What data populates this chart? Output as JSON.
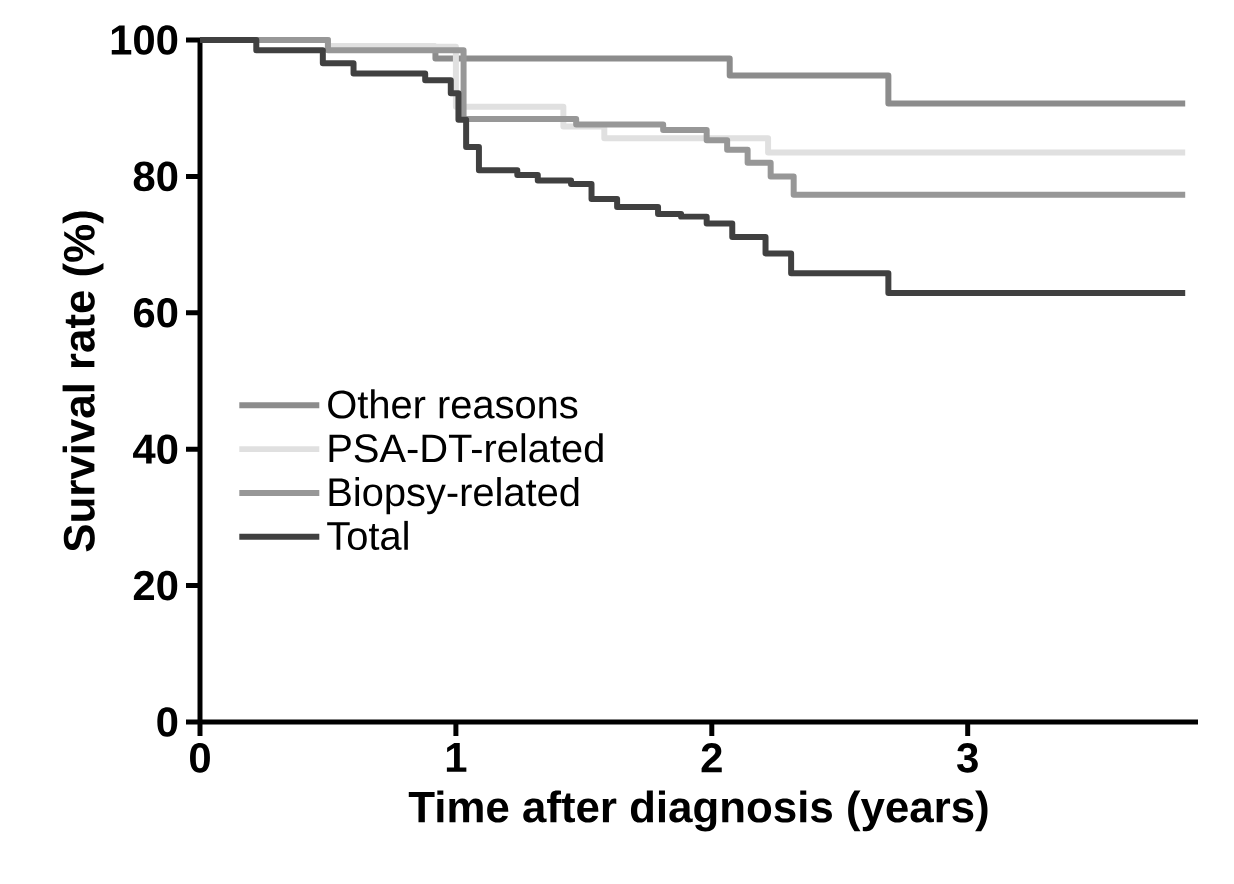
{
  "chart_data": {
    "type": "step",
    "xlabel": "Time after diagnosis (years)",
    "ylabel": "Survival rate (%)",
    "xlim": [
      0,
      3.9
    ],
    "ylim": [
      0,
      100
    ],
    "xticks": [
      0,
      1,
      2,
      3
    ],
    "yticks": [
      0,
      20,
      40,
      60,
      80,
      100
    ],
    "legend": "left",
    "series": [
      {
        "name": "Other reasons",
        "color": "#8c8c8c",
        "x": [
          0,
          0.5,
          0.92,
          2.07,
          2.69,
          3.85
        ],
        "values": [
          100,
          99,
          97.3,
          94.8,
          90.7,
          90.7
        ]
      },
      {
        "name": "PSA-DT-related",
        "color": "#e0e0e0",
        "x": [
          0,
          0.5,
          1.0,
          1.42,
          1.58,
          2.22,
          3.85
        ],
        "values": [
          100,
          99,
          90.2,
          87.3,
          85.6,
          83.5,
          83.5
        ]
      },
      {
        "name": "Biopsy-related",
        "color": "#979797",
        "x": [
          0,
          0.5,
          1.03,
          1.47,
          1.81,
          1.98,
          2.06,
          2.14,
          2.23,
          2.32,
          3.85
        ],
        "values": [
          100,
          98.5,
          88.4,
          87.6,
          86.8,
          85.3,
          83.9,
          82,
          80,
          77.3,
          77.3
        ]
      },
      {
        "name": "Total",
        "color": "#404040",
        "x": [
          0,
          0.22,
          0.48,
          0.6,
          0.88,
          0.98,
          1.01,
          1.04,
          1.09,
          1.24,
          1.32,
          1.45,
          1.53,
          1.63,
          1.79,
          1.88,
          1.98,
          2.08,
          2.21,
          2.31,
          2.69,
          3.85
        ],
        "values": [
          100,
          98.5,
          96.6,
          95.1,
          94.1,
          92.2,
          88.3,
          84.3,
          80.9,
          80.2,
          79.4,
          78.9,
          76.7,
          75.5,
          74.5,
          74.1,
          73.1,
          71.1,
          68.7,
          65.8,
          62.9,
          62.9
        ]
      }
    ]
  }
}
